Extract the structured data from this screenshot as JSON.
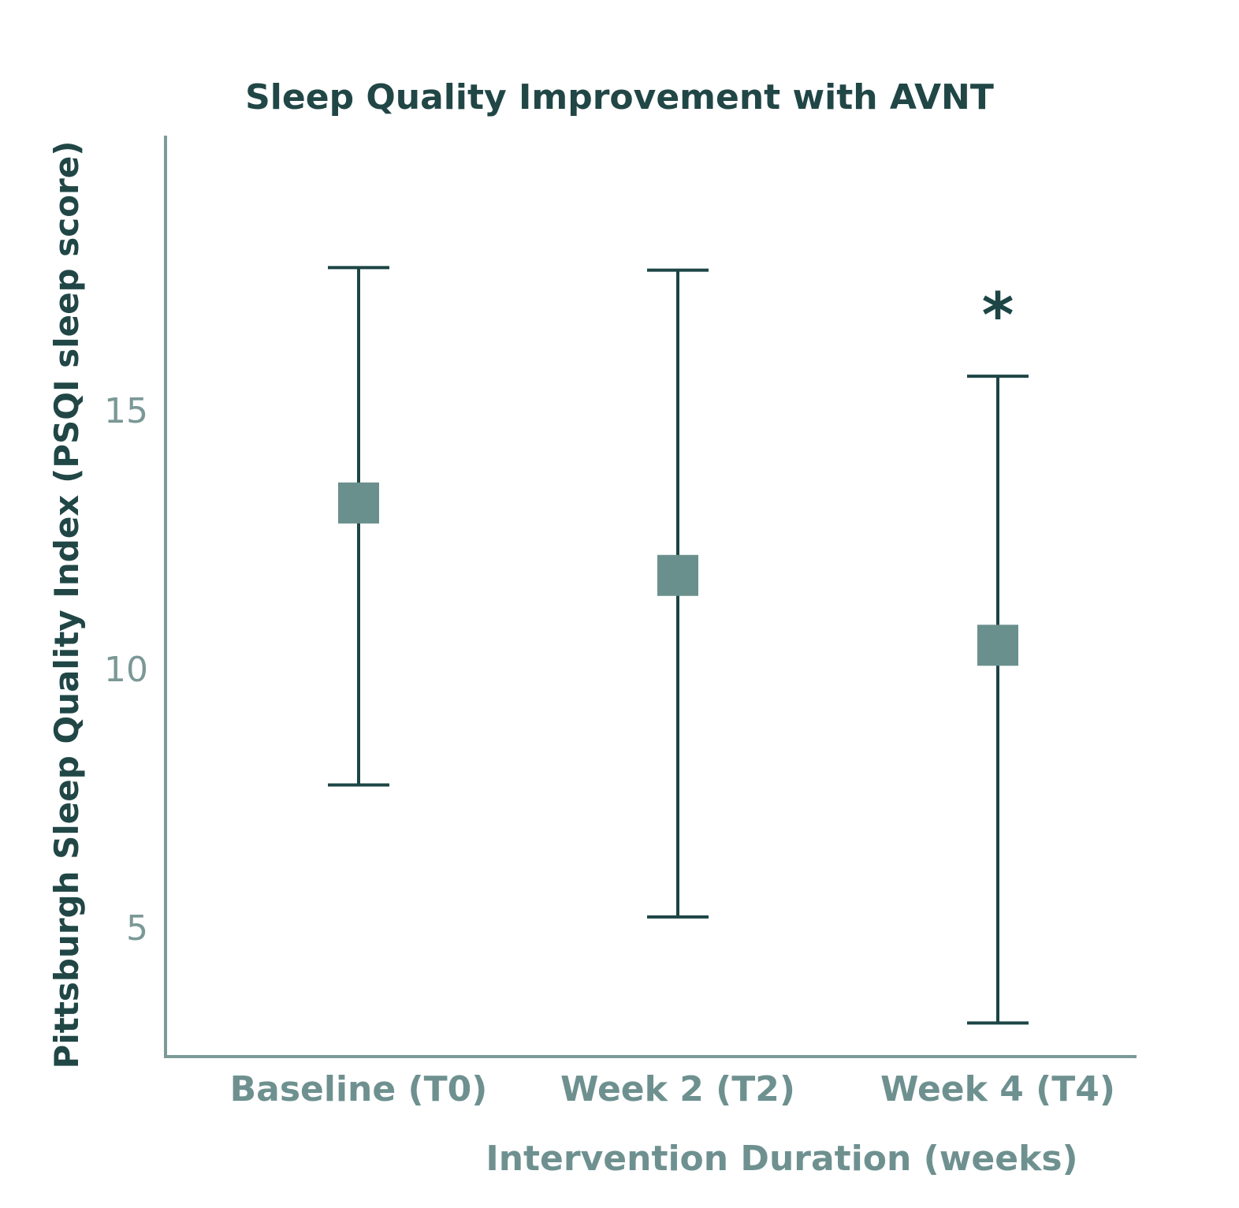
{
  "colors": {
    "axis": "#7b9b98",
    "error_bar": "#1d4545",
    "marker": "#6a908d",
    "title": "#214646",
    "label": "#6e9190"
  },
  "chart_data": {
    "type": "scatter",
    "title": "Sleep Quality Improvement with AVNT",
    "xlabel": "Intervention Duration (weeks)",
    "ylabel": "Pittsburgh Sleep Quality Index (PSQI sleep score)",
    "categories": [
      "Baseline (T0)",
      "Week 2 (T2)",
      "Week 4 (T4)"
    ],
    "yticks": [
      5,
      10,
      15
    ],
    "ylim": [
      2.5,
      20.3
    ],
    "grid": false,
    "marker": "square",
    "series": [
      {
        "values": [
          13.2,
          11.8,
          10.45
        ],
        "error_high": [
          17.75,
          17.7,
          15.65
        ],
        "error_low": [
          7.75,
          5.2,
          3.15
        ]
      }
    ],
    "annotations": [
      {
        "category": "Week 4 (T4)",
        "text": "*"
      }
    ]
  }
}
